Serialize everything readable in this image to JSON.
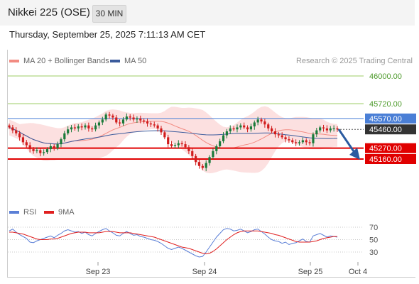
{
  "header": {
    "title": "Nikkei 225 (OSE)",
    "interval": "30 MIN"
  },
  "timestamp": "Thursday, September 25, 2025 7:11:13 AM CET",
  "legend": {
    "ma20": {
      "label": "MA 20 + Bollinger Bands",
      "color": "#f28b82"
    },
    "ma50": {
      "label": "MA 50",
      "color": "#3b5b9c"
    },
    "rsi": {
      "label": "RSI",
      "color": "#5b7fd6"
    },
    "ma9": {
      "label": "9MA",
      "color": "#e02020"
    }
  },
  "credit": "Research © 2025 Trading Central",
  "colors": {
    "up": "#1a7a3a",
    "down": "#d11c1c",
    "resistance": "#9ccc65",
    "support": "#e00000",
    "pivot": "#4a7fd6",
    "current": "#333333",
    "arrow": "#2a5aa0"
  },
  "chart_data": {
    "type": "candlestick",
    "ylim": [
      44700,
      46200
    ],
    "x_ticks": [
      "Sep 23",
      "Sep 24",
      "Sep 25",
      "Oct 4"
    ],
    "levels": [
      {
        "value": 46000,
        "label": "46000.00",
        "kind": "resistance"
      },
      {
        "value": 45720,
        "label": "45720.00",
        "kind": "resistance"
      },
      {
        "value": 45570,
        "label": "45570.00",
        "kind": "pivot"
      },
      {
        "value": 45460,
        "label": "45460.00",
        "kind": "current"
      },
      {
        "value": 45270,
        "label": "45270.00",
        "kind": "support"
      },
      {
        "value": 45160,
        "label": "45160.00",
        "kind": "support"
      }
    ],
    "closes": [
      45480,
      45450,
      45420,
      45380,
      45330,
      45300,
      45260,
      45240,
      45250,
      45220,
      45230,
      45260,
      45290,
      45270,
      45310,
      45360,
      45420,
      45460,
      45480,
      45470,
      45490,
      45480,
      45500,
      45470,
      45460,
      45500,
      45530,
      45560,
      45610,
      45600,
      45580,
      45530,
      45520,
      45560,
      45590,
      45580,
      45560,
      45570,
      45550,
      45540,
      45520,
      45510,
      45500,
      45470,
      45430,
      45380,
      45310,
      45290,
      45300,
      45320,
      45310,
      45280,
      45240,
      45190,
      45130,
      45090,
      45070,
      45120,
      45180,
      45240,
      45290,
      45340,
      45400,
      45440,
      45470,
      45460,
      45480,
      45500,
      45480,
      45460,
      45490,
      45530,
      45560,
      45540,
      45510,
      45470,
      45440,
      45410,
      45400,
      45380,
      45360,
      45350,
      45330,
      45320,
      45330,
      45350,
      45330,
      45320,
      45410,
      45450,
      45480,
      45470,
      45450,
      45470,
      45470,
      45460
    ],
    "rsi": {
      "levels": [
        70,
        50,
        30
      ],
      "ylim": [
        10,
        90
      ],
      "values": [
        64,
        67,
        62,
        58,
        55,
        52,
        46,
        45,
        48,
        50,
        52,
        54,
        56,
        53,
        57,
        60,
        64,
        66,
        64,
        62,
        63,
        60,
        62,
        58,
        56,
        60,
        63,
        66,
        68,
        64,
        61,
        57,
        56,
        60,
        63,
        60,
        57,
        58,
        55,
        54,
        52,
        50,
        49,
        47,
        44,
        40,
        36,
        34,
        36,
        38,
        36,
        33,
        30,
        27,
        24,
        22,
        23,
        30,
        38,
        46,
        54,
        60,
        66,
        68,
        67,
        64,
        65,
        67,
        64,
        61,
        63,
        66,
        67,
        63,
        59,
        54,
        50,
        48,
        47,
        44,
        46,
        42,
        44,
        45,
        48,
        51,
        47,
        46,
        56,
        58,
        60,
        57,
        54,
        56,
        55,
        54
      ],
      "ma9": [
        62,
        62,
        61,
        60,
        59,
        57,
        55,
        53,
        51,
        50,
        50,
        50,
        51,
        51,
        52,
        54,
        56,
        58,
        60,
        61,
        62,
        62,
        62,
        61,
        61,
        61,
        61,
        62,
        63,
        63,
        63,
        62,
        61,
        61,
        61,
        61,
        60,
        59,
        58,
        57,
        56,
        55,
        54,
        52,
        50,
        48,
        46,
        44,
        42,
        40,
        38,
        37,
        36,
        34,
        32,
        30,
        28,
        27,
        28,
        31,
        35,
        40,
        45,
        50,
        54,
        58,
        61,
        63,
        64,
        64,
        64,
        64,
        64,
        63,
        62,
        61,
        60,
        58,
        57,
        55,
        53,
        51,
        49,
        47,
        46,
        46,
        46,
        46,
        47,
        48,
        50,
        52,
        53,
        54,
        55,
        55
      ]
    }
  }
}
